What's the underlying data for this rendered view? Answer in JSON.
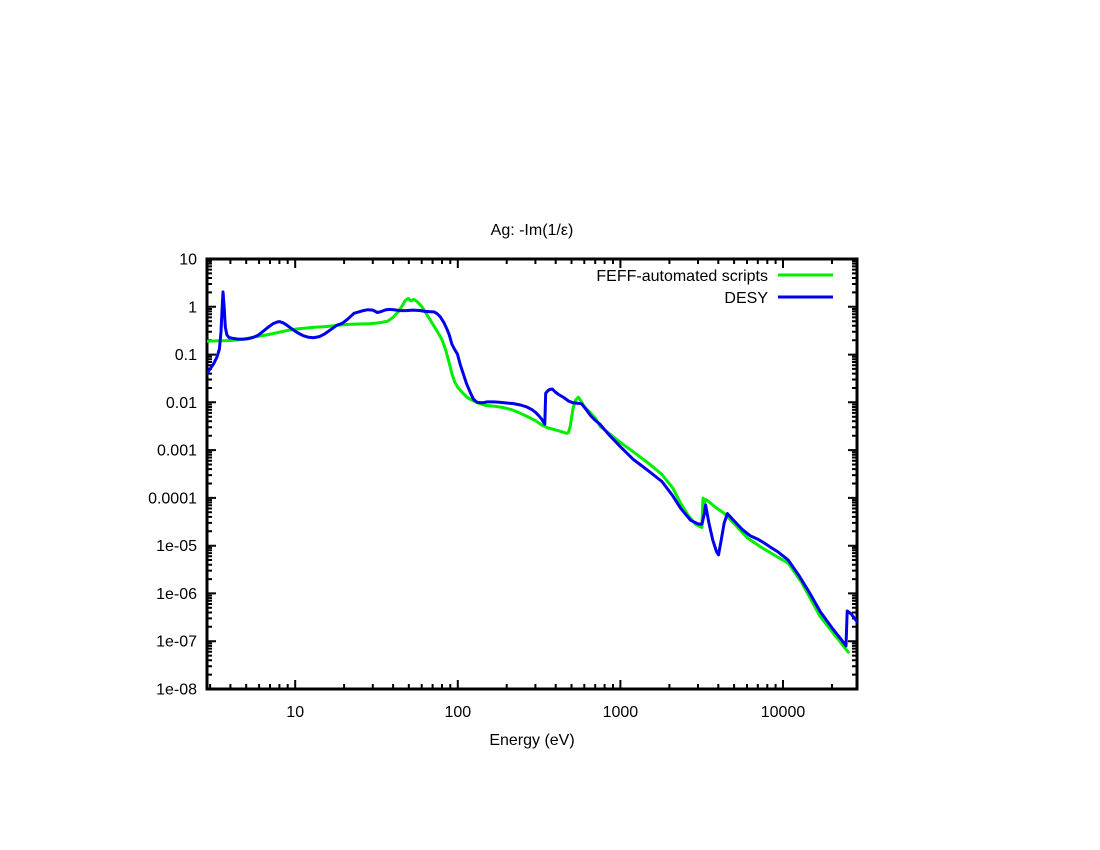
{
  "chart_data": {
    "type": "line",
    "title": "Ag: -Im(1/ε)",
    "xlabel": "Energy (eV)",
    "ylabel": "",
    "xscale": "log",
    "yscale": "log",
    "xlim": [
      2.87,
      28500
    ],
    "ylim": [
      1e-08,
      10
    ],
    "grid": false,
    "legend_position": "top-right-inside",
    "axis_color": "#000000",
    "background_color": "#ffffff",
    "x_ticks": [
      {
        "value": 10,
        "label": "10"
      },
      {
        "value": 100,
        "label": "100"
      },
      {
        "value": 1000,
        "label": "1000"
      },
      {
        "value": 10000,
        "label": "10000"
      }
    ],
    "y_ticks": [
      {
        "value": 10,
        "label": "10"
      },
      {
        "value": 1,
        "label": "1"
      },
      {
        "value": 0.1,
        "label": "0.1"
      },
      {
        "value": 0.01,
        "label": "0.01"
      },
      {
        "value": 0.001,
        "label": "0.001"
      },
      {
        "value": 0.0001,
        "label": "0.0001"
      },
      {
        "value": 1e-05,
        "label": "1e-05"
      },
      {
        "value": 1e-06,
        "label": "1e-06"
      },
      {
        "value": 1e-07,
        "label": "1e-07"
      },
      {
        "value": 1e-08,
        "label": "1e-08"
      }
    ],
    "series": [
      {
        "name": "FEFF-automated scripts",
        "color": "#00ee00",
        "points": [
          [
            2.87,
            0.19
          ],
          [
            3.3,
            0.193
          ],
          [
            3.8,
            0.196
          ],
          [
            4.4,
            0.202
          ],
          [
            5.1,
            0.218
          ],
          [
            5.9,
            0.24
          ],
          [
            6.8,
            0.262
          ],
          [
            7.8,
            0.288
          ],
          [
            9,
            0.32
          ],
          [
            10.2,
            0.342
          ],
          [
            11.6,
            0.358
          ],
          [
            13.2,
            0.372
          ],
          [
            15,
            0.382
          ],
          [
            17,
            0.398
          ],
          [
            19.3,
            0.418
          ],
          [
            22,
            0.43
          ],
          [
            25,
            0.436
          ],
          [
            28.4,
            0.443
          ],
          [
            31,
            0.45
          ],
          [
            34,
            0.47
          ],
          [
            37,
            0.5
          ],
          [
            40,
            0.6
          ],
          [
            43,
            0.78
          ],
          [
            45.5,
            1.05
          ],
          [
            47.5,
            1.35
          ],
          [
            49.5,
            1.5
          ],
          [
            51.5,
            1.33
          ],
          [
            53.5,
            1.43
          ],
          [
            56,
            1.3
          ],
          [
            60,
            1.02
          ],
          [
            65,
            0.66
          ],
          [
            70,
            0.44
          ],
          [
            75,
            0.3
          ],
          [
            80,
            0.205
          ],
          [
            84,
            0.128
          ],
          [
            88,
            0.072
          ],
          [
            92,
            0.04
          ],
          [
            96,
            0.026
          ],
          [
            100,
            0.0205
          ],
          [
            107,
            0.0158
          ],
          [
            114,
            0.0128
          ],
          [
            121,
            0.0113
          ],
          [
            135,
            0.0095
          ],
          [
            150,
            0.0086
          ],
          [
            168,
            0.0083
          ],
          [
            190,
            0.0078
          ],
          [
            215,
            0.007
          ],
          [
            243,
            0.0059
          ],
          [
            272,
            0.0049
          ],
          [
            302,
            0.0041
          ],
          [
            330,
            0.0033
          ],
          [
            360,
            0.0029
          ],
          [
            400,
            0.00265
          ],
          [
            440,
            0.0024
          ],
          [
            465,
            0.00225
          ],
          [
            478,
            0.0023
          ],
          [
            492,
            0.0032
          ],
          [
            510,
            0.0072
          ],
          [
            530,
            0.0112
          ],
          [
            552,
            0.0128
          ],
          [
            570,
            0.0108
          ],
          [
            595,
            0.0085
          ],
          [
            620,
            0.0072
          ],
          [
            660,
            0.0058
          ],
          [
            700,
            0.0047
          ],
          [
            753,
            0.0031
          ],
          [
            850,
            0.00225
          ],
          [
            1000,
            0.00145
          ],
          [
            1200,
            0.00092
          ],
          [
            1500,
            0.00052
          ],
          [
            1800,
            0.00031
          ],
          [
            2100,
            0.00016
          ],
          [
            2340,
            7.8e-05
          ],
          [
            2600,
            4.4e-05
          ],
          [
            2900,
            2.8e-05
          ],
          [
            3170,
            2.4e-05
          ],
          [
            3220,
            9.9e-05
          ],
          [
            3300,
            8e-05
          ],
          [
            3350,
            9.2e-05
          ],
          [
            3480,
            8.5e-05
          ],
          [
            3800,
            6.5e-05
          ],
          [
            4300,
            4.9e-05
          ],
          [
            5000,
            2.9e-05
          ],
          [
            6050,
            1.45e-05
          ],
          [
            7300,
            9.4e-06
          ],
          [
            8800,
            6.4e-06
          ],
          [
            10760,
            4.3e-06
          ],
          [
            13000,
            1.7e-06
          ],
          [
            16900,
            3.3e-07
          ],
          [
            20000,
            1.6e-07
          ],
          [
            25200,
            5.9e-08
          ]
        ]
      },
      {
        "name": "DESY",
        "color": "#0000ee",
        "points": [
          [
            2.87,
            0.04
          ],
          [
            3.0,
            0.05
          ],
          [
            3.15,
            0.064
          ],
          [
            3.3,
            0.088
          ],
          [
            3.42,
            0.13
          ],
          [
            3.5,
            0.3
          ],
          [
            3.56,
            1.0
          ],
          [
            3.6,
            2.05
          ],
          [
            3.66,
            0.95
          ],
          [
            3.72,
            0.38
          ],
          [
            3.8,
            0.26
          ],
          [
            3.92,
            0.228
          ],
          [
            4.1,
            0.22
          ],
          [
            4.4,
            0.212
          ],
          [
            4.75,
            0.21
          ],
          [
            5.1,
            0.214
          ],
          [
            5.5,
            0.228
          ],
          [
            5.9,
            0.252
          ],
          [
            6.3,
            0.3
          ],
          [
            6.8,
            0.37
          ],
          [
            7.3,
            0.44
          ],
          [
            7.75,
            0.48
          ],
          [
            8,
            0.49
          ],
          [
            8.5,
            0.455
          ],
          [
            9,
            0.4
          ],
          [
            9.6,
            0.34
          ],
          [
            10.3,
            0.29
          ],
          [
            11.2,
            0.248
          ],
          [
            12.1,
            0.23
          ],
          [
            13,
            0.225
          ],
          [
            14.1,
            0.238
          ],
          [
            15.2,
            0.27
          ],
          [
            16.5,
            0.33
          ],
          [
            18,
            0.41
          ],
          [
            19.5,
            0.45
          ],
          [
            21,
            0.55
          ],
          [
            23,
            0.73
          ],
          [
            25.8,
            0.82
          ],
          [
            28,
            0.87
          ],
          [
            30,
            0.85
          ],
          [
            32,
            0.76
          ],
          [
            34,
            0.8
          ],
          [
            36,
            0.86
          ],
          [
            38,
            0.88
          ],
          [
            41,
            0.86
          ],
          [
            44,
            0.83
          ],
          [
            48,
            0.83
          ],
          [
            53,
            0.85
          ],
          [
            58,
            0.835
          ],
          [
            63,
            0.8
          ],
          [
            68,
            0.79
          ],
          [
            71.5,
            0.78
          ],
          [
            74.5,
            0.72
          ],
          [
            78,
            0.62
          ],
          [
            82,
            0.47
          ],
          [
            85.5,
            0.35
          ],
          [
            88.5,
            0.26
          ],
          [
            92,
            0.165
          ],
          [
            96,
            0.125
          ],
          [
            99.5,
            0.103
          ],
          [
            103.5,
            0.062
          ],
          [
            107.5,
            0.042
          ],
          [
            113,
            0.025
          ],
          [
            119.5,
            0.0158
          ],
          [
            125,
            0.0116
          ],
          [
            131,
            0.01
          ],
          [
            141,
            0.0098
          ],
          [
            152,
            0.0102
          ],
          [
            166,
            0.0102
          ],
          [
            180,
            0.01
          ],
          [
            200,
            0.0097
          ],
          [
            220,
            0.0094
          ],
          [
            243,
            0.0088
          ],
          [
            266,
            0.008
          ],
          [
            286,
            0.007
          ],
          [
            302,
            0.0061
          ],
          [
            316,
            0.0052
          ],
          [
            327,
            0.0045
          ],
          [
            336,
            0.0039
          ],
          [
            343,
            0.0035
          ],
          [
            347,
            0.0155
          ],
          [
            356,
            0.0172
          ],
          [
            367,
            0.0186
          ],
          [
            381,
            0.019
          ],
          [
            397,
            0.0165
          ],
          [
            417,
            0.0146
          ],
          [
            448,
            0.0126
          ],
          [
            481,
            0.0106
          ],
          [
            512,
            0.0098
          ],
          [
            545,
            0.0096
          ],
          [
            577,
            0.0093
          ],
          [
            612,
            0.0073
          ],
          [
            655,
            0.0053
          ],
          [
            690,
            0.0044
          ],
          [
            753,
            0.0034
          ],
          [
            850,
            0.0021
          ],
          [
            1000,
            0.00118
          ],
          [
            1200,
            0.00064
          ],
          [
            1500,
            0.00036
          ],
          [
            1800,
            0.00022
          ],
          [
            2100,
            0.00011
          ],
          [
            2340,
            6.1e-05
          ],
          [
            2700,
            3.4e-05
          ],
          [
            3000,
            2.85e-05
          ],
          [
            3170,
            2.8e-05
          ],
          [
            3280,
            4.6e-05
          ],
          [
            3340,
            7.1e-05
          ],
          [
            3500,
            3e-05
          ],
          [
            3700,
            1.3e-05
          ],
          [
            3900,
            7.5e-06
          ],
          [
            4010,
            6.4e-06
          ],
          [
            4150,
            1.2e-05
          ],
          [
            4350,
            3e-05
          ],
          [
            4550,
            4.7e-05
          ],
          [
            5000,
            3.3e-05
          ],
          [
            5600,
            2.2e-05
          ],
          [
            6300,
            1.6e-05
          ],
          [
            7040,
            1.35e-05
          ],
          [
            7600,
            1.16e-05
          ],
          [
            8500,
            9e-06
          ],
          [
            9250,
            7.5e-06
          ],
          [
            10760,
            5e-06
          ],
          [
            12500,
            2.4e-06
          ],
          [
            14500,
            1.05e-06
          ],
          [
            16900,
            4.2e-07
          ],
          [
            20000,
            1.9e-07
          ],
          [
            22500,
            1.15e-07
          ],
          [
            24400,
            8e-08
          ],
          [
            24800,
            4.3e-07
          ],
          [
            26300,
            3.7e-07
          ],
          [
            28400,
            2.6e-07
          ]
        ]
      }
    ]
  }
}
